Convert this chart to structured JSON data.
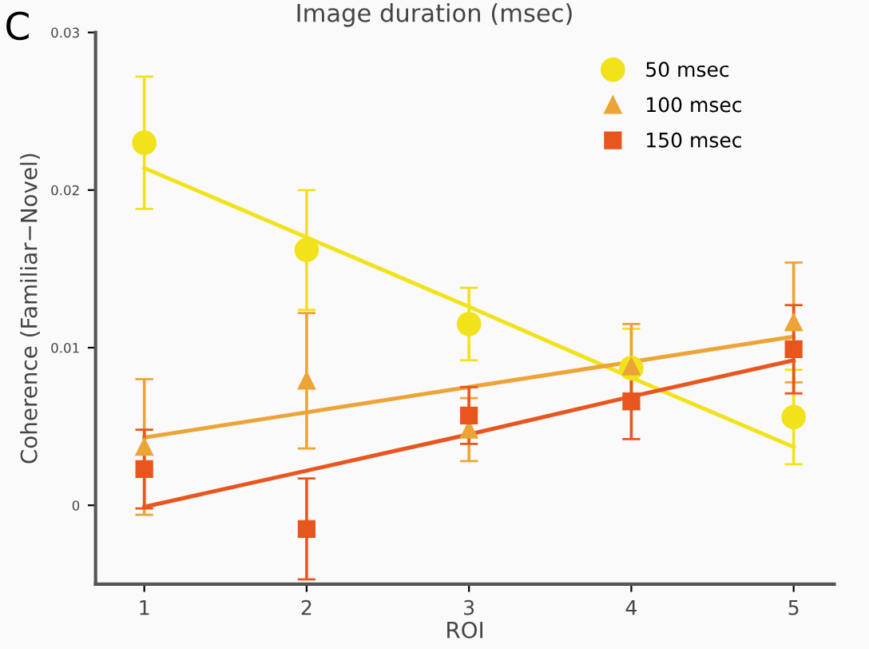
{
  "chart_data": {
    "type": "scatter",
    "xlabel": "ROI",
    "ylabel": "Coherence (Familiar−Novel)",
    "annotations": [
      "Image duration (msec)",
      "C"
    ],
    "x": [
      1,
      2,
      3,
      4,
      5
    ],
    "xlim": [
      0.7,
      5.25
    ],
    "xticks": [
      1,
      2,
      3,
      4,
      5
    ],
    "ylim": [
      -0.005,
      0.03
    ],
    "yticks": [
      0,
      0.01,
      0.02,
      0.03
    ],
    "grid": false,
    "legend": "top right",
    "series": [
      {
        "name": "50 msec",
        "marker": "circle",
        "color": "#f2e21a",
        "values": [
          0.023,
          0.0162,
          0.0115,
          0.0087,
          0.0056
        ],
        "errors": [
          0.0042,
          0.0038,
          0.0023,
          0.0025,
          0.003
        ]
      },
      {
        "name": "100 msec",
        "marker": "triangle",
        "color": "#eda436",
        "values": [
          0.0037,
          0.0079,
          0.0048,
          0.0088,
          0.0116
        ],
        "errors": [
          0.0043,
          0.0043,
          0.002,
          0.0027,
          0.0038
        ]
      },
      {
        "name": "150 msec",
        "marker": "square",
        "color": "#e8561e",
        "values": [
          0.0023,
          -0.0015,
          0.0057,
          0.0066,
          0.0099
        ],
        "errors": [
          0.0025,
          0.0032,
          0.0018,
          0.0024,
          0.0028
        ]
      },
      {
        "type": "line",
        "color": "#f2e21a",
        "values": [
          0.0214,
          0.017,
          0.0126,
          0.0081,
          0.0037
        ]
      },
      {
        "type": "line",
        "color": "#eda436",
        "values": [
          0.0043,
          0.0059,
          0.0075,
          0.0091,
          0.0107
        ]
      },
      {
        "type": "line",
        "color": "#e8561e",
        "values": [
          -0.0001,
          0.0022,
          0.0045,
          0.0069,
          0.0092
        ]
      }
    ]
  }
}
